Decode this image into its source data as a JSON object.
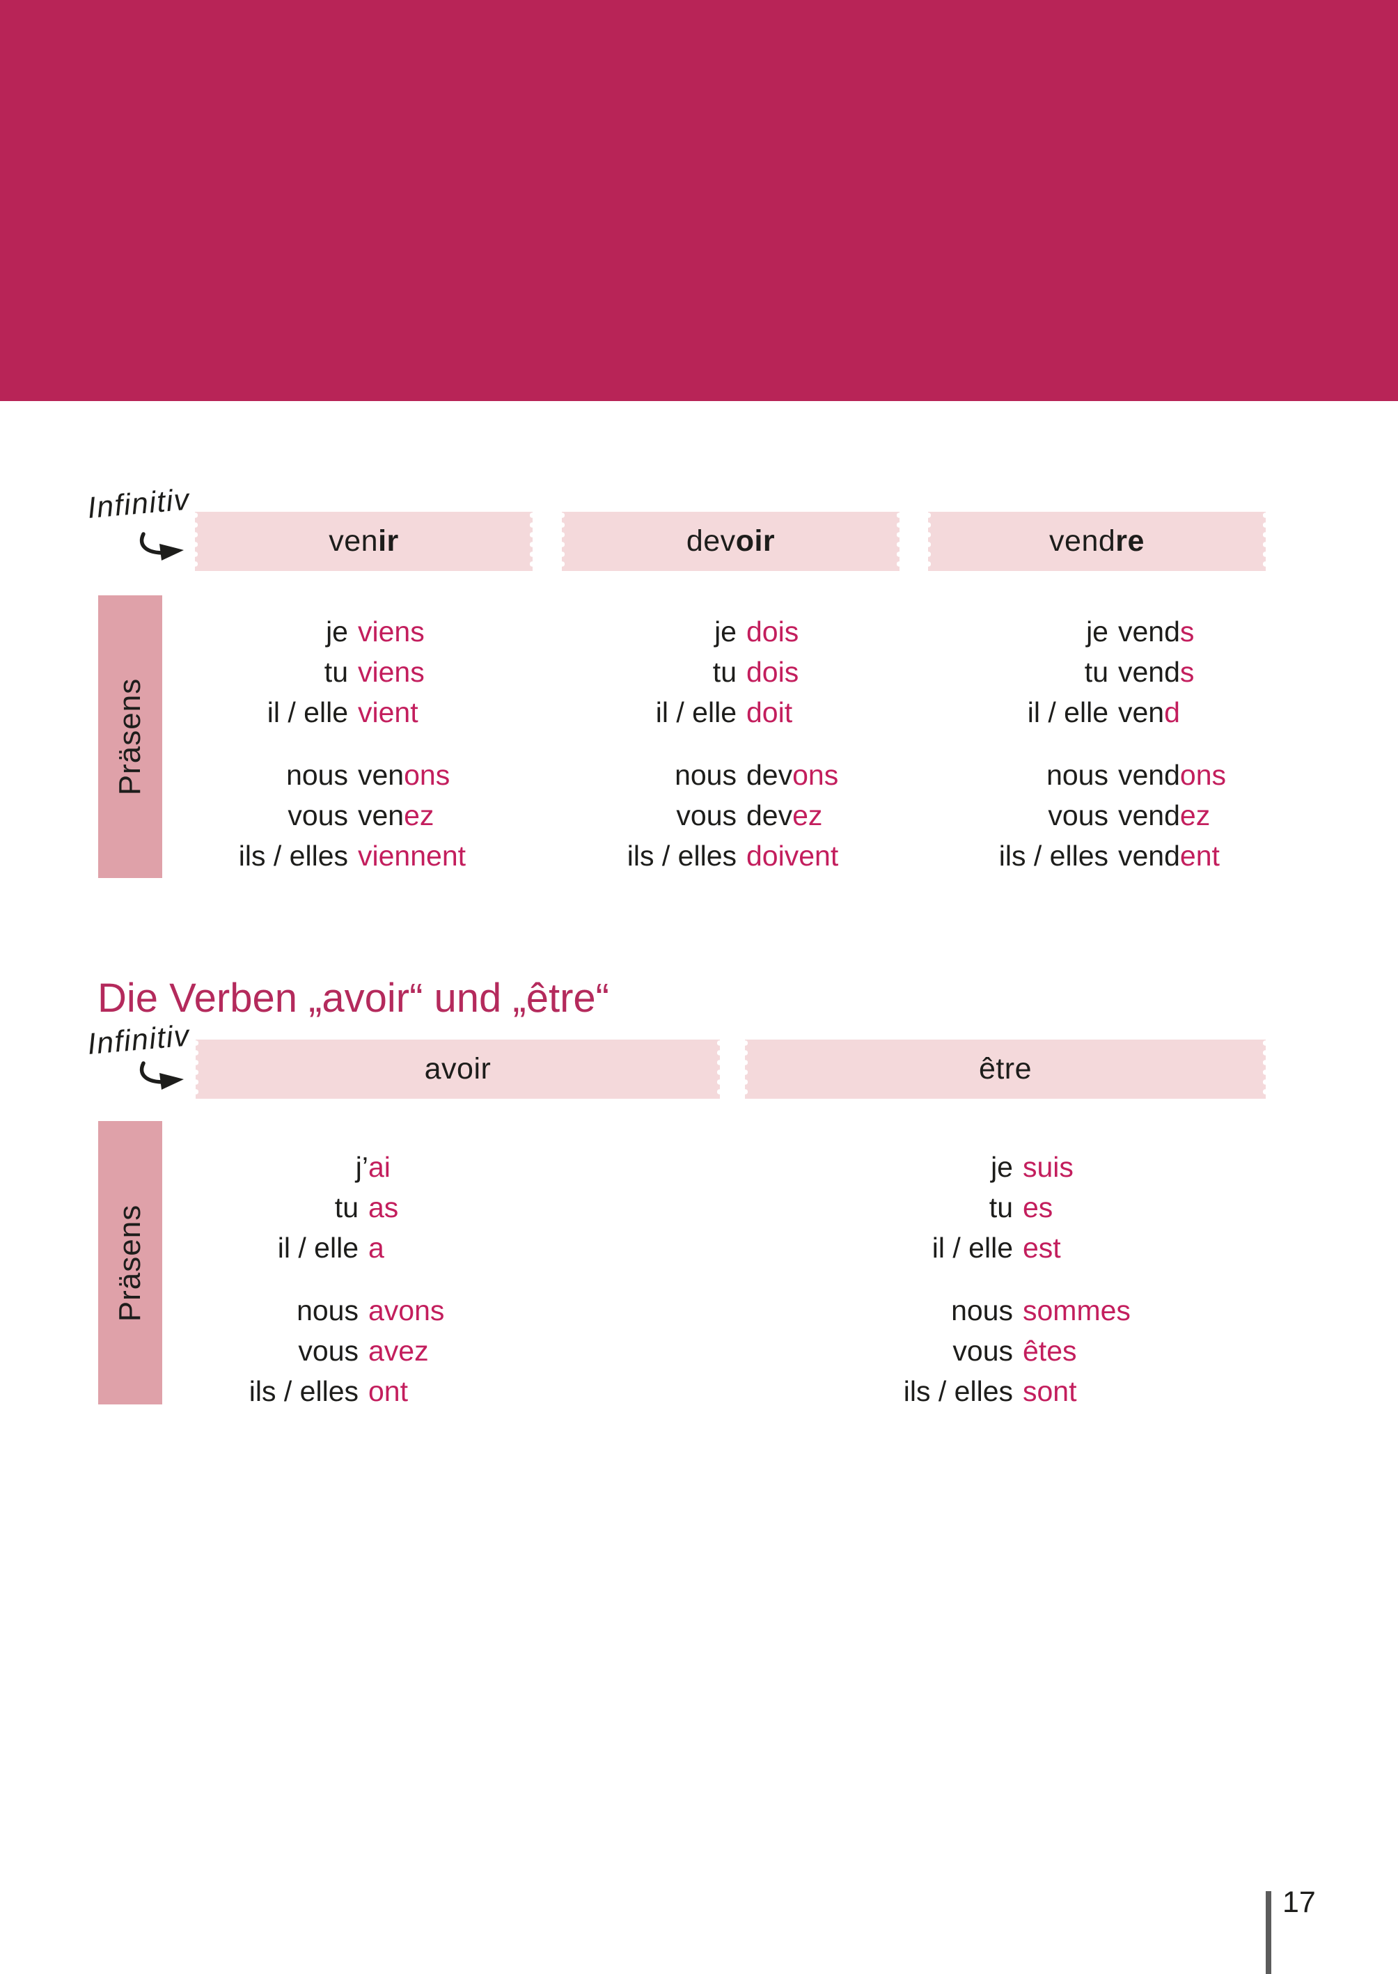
{
  "colors": {
    "banner": "#b82457",
    "accent": "#c31e5d",
    "headingCol": "#b42a5c",
    "boxPink": "#f4d9db",
    "sidePink": "#dfa1a9",
    "ink": "#1d1d1b",
    "barGray": "#5c5c5c"
  },
  "labels": {
    "infinitiv": "Infinitiv",
    "praesens": "Präsens"
  },
  "section2_heading": "Die Verben „avoir“ und „être“",
  "page_number": "17",
  "table1": {
    "headers": [
      {
        "stem": "ven",
        "ending_bold": "ir"
      },
      {
        "stem": "dev",
        "ending_bold": "oir"
      },
      {
        "stem": "vend",
        "ending_bold": "re"
      }
    ],
    "columns": [
      {
        "verb": "venir",
        "rows": [
          {
            "pronoun": "je",
            "stem": "",
            "ending": "viens"
          },
          {
            "pronoun": "tu",
            "stem": "",
            "ending": "viens"
          },
          {
            "pronoun": "il / elle",
            "stem": "",
            "ending": "vient"
          },
          {
            "pronoun": "nous",
            "stem": "ven",
            "ending": "ons"
          },
          {
            "pronoun": "vous",
            "stem": "ven",
            "ending": "ez"
          },
          {
            "pronoun": "ils / elles",
            "stem": "",
            "ending": "viennent"
          }
        ]
      },
      {
        "verb": "devoir",
        "rows": [
          {
            "pronoun": "je",
            "stem": "",
            "ending": "dois"
          },
          {
            "pronoun": "tu",
            "stem": "",
            "ending": "dois"
          },
          {
            "pronoun": "il / elle",
            "stem": "",
            "ending": "doit"
          },
          {
            "pronoun": "nous",
            "stem": "dev",
            "ending": "ons"
          },
          {
            "pronoun": "vous",
            "stem": "dev",
            "ending": "ez"
          },
          {
            "pronoun": "ils / elles",
            "stem": "",
            "ending": "doivent"
          }
        ]
      },
      {
        "verb": "vendre",
        "rows": [
          {
            "pronoun": "je",
            "stem": "vend",
            "ending": "s"
          },
          {
            "pronoun": "tu",
            "stem": "vend",
            "ending": "s"
          },
          {
            "pronoun": "il / elle",
            "stem": "ven",
            "ending": "d"
          },
          {
            "pronoun": "nous",
            "stem": "vend",
            "ending": "ons"
          },
          {
            "pronoun": "vous",
            "stem": "vend",
            "ending": "ez"
          },
          {
            "pronoun": "ils / elles",
            "stem": "vend",
            "ending": "ent"
          }
        ]
      }
    ]
  },
  "table2": {
    "headers": [
      {
        "label": "avoir"
      },
      {
        "label": "être"
      }
    ],
    "columns": [
      {
        "verb": "avoir",
        "rows": [
          {
            "pronoun": "j’",
            "stem": "",
            "ending": "ai",
            "nospace": true
          },
          {
            "pronoun": "tu",
            "stem": "",
            "ending": "as"
          },
          {
            "pronoun": "il / elle",
            "stem": "",
            "ending": "a"
          },
          {
            "pronoun": "nous",
            "stem": "",
            "ending": "avons"
          },
          {
            "pronoun": "vous",
            "stem": "",
            "ending": "avez"
          },
          {
            "pronoun": "ils / elles",
            "stem": "",
            "ending": "ont"
          }
        ]
      },
      {
        "verb": "être",
        "rows": [
          {
            "pronoun": "je",
            "stem": "",
            "ending": "suis"
          },
          {
            "pronoun": "tu",
            "stem": "",
            "ending": "es"
          },
          {
            "pronoun": "il / elle",
            "stem": "",
            "ending": "est"
          },
          {
            "pronoun": "nous",
            "stem": "",
            "ending": "sommes"
          },
          {
            "pronoun": "vous",
            "stem": "",
            "ending": "êtes"
          },
          {
            "pronoun": "ils / elles",
            "stem": "",
            "ending": "sont"
          }
        ]
      }
    ]
  }
}
